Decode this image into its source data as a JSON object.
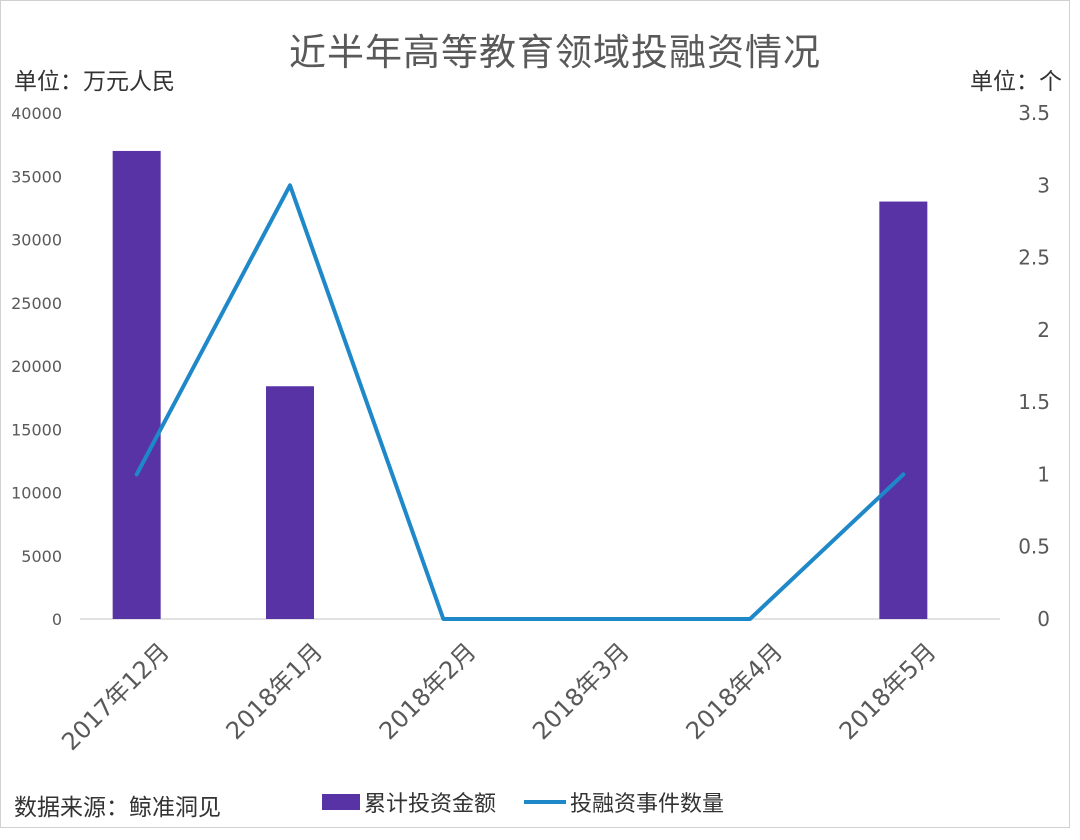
{
  "chart_data": {
    "type": "bar",
    "title": "近半年高等教育领域投融资情况",
    "categories": [
      "2017年12月",
      "2018年1月",
      "2018年2月",
      "2018年3月",
      "2018年4月",
      "2018年5月"
    ],
    "series": [
      {
        "name": "累计投资金额",
        "type": "bar",
        "axis": "left",
        "color": "#5733a6",
        "values": [
          37000,
          18400,
          0,
          0,
          0,
          33000
        ]
      },
      {
        "name": "投融资事件数量",
        "type": "line",
        "axis": "right",
        "color": "#1e88c8",
        "values": [
          1,
          3,
          0,
          0,
          0,
          1
        ]
      }
    ],
    "y_left": {
      "unit_label": "单位：万元人民",
      "ylim": [
        0,
        40000
      ],
      "ticks": [
        "0",
        "5000",
        "10000",
        "15000",
        "20000",
        "25000",
        "30000",
        "35000",
        "40000"
      ]
    },
    "y_right": {
      "unit_label": "单位：个",
      "ylim": [
        0,
        3.5
      ],
      "ticks": [
        "0",
        "0.5",
        "1",
        "1.5",
        "2",
        "2.5",
        "3",
        "3.5"
      ]
    },
    "grid": false,
    "legend_position": "bottom",
    "source": "数据来源：鲸准洞见"
  }
}
